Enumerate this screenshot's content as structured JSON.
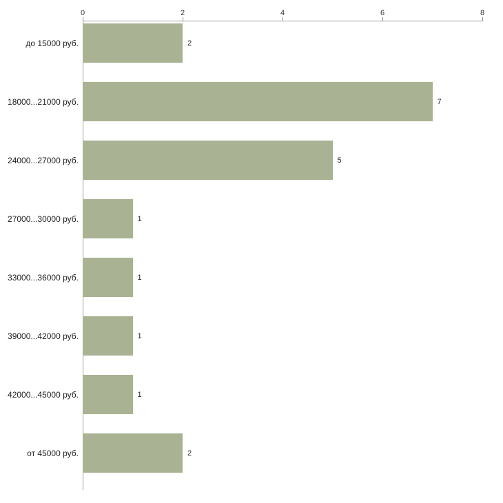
{
  "chart_data": {
    "type": "bar",
    "orientation": "horizontal",
    "title": "",
    "xlabel": "",
    "ylabel": "",
    "categories": [
      "до 15000 руб.",
      "18000...21000 руб.",
      "24000...27000 руб.",
      "27000...30000 руб.",
      "33000...36000 руб.",
      "39000...42000 руб.",
      "42000...45000 руб.",
      "от 45000 руб."
    ],
    "values": [
      2,
      7,
      5,
      1,
      1,
      1,
      1,
      2
    ],
    "xlim": [
      0,
      8
    ],
    "x_ticks": [
      0,
      2,
      4,
      6,
      8
    ],
    "grid": false,
    "legend": false,
    "bar_color": "#a9b293",
    "axis_color": "#9a9a9a",
    "value_labels_shown": true,
    "axis_position": "top"
  }
}
